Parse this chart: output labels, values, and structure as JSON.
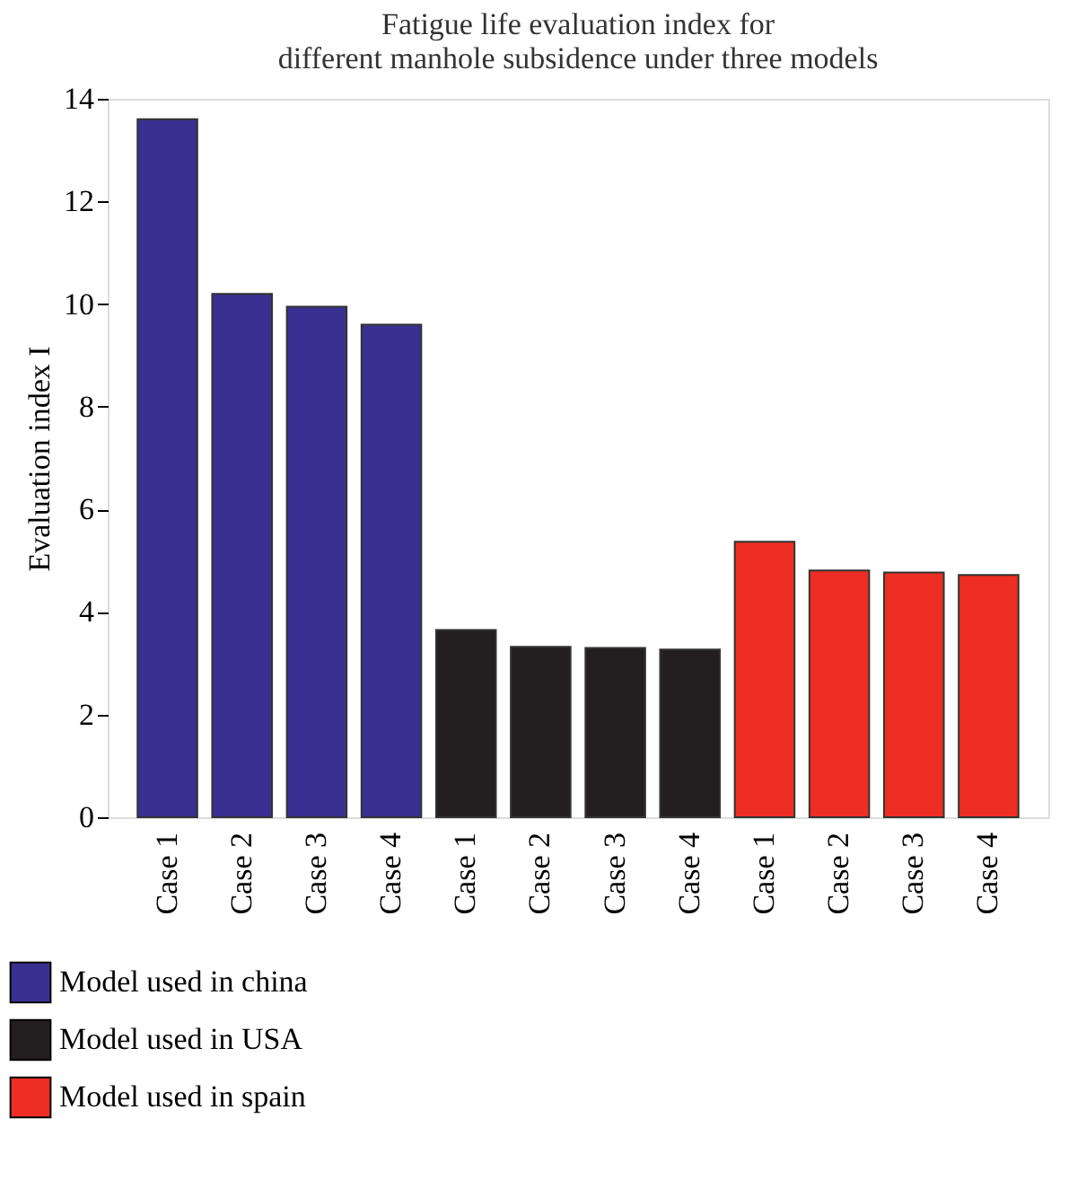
{
  "chart_data": {
    "type": "bar",
    "title": [
      "Fatigue life evaluation index for",
      "different manhole subsidence under three models"
    ],
    "ylabel": "Evaluation index I",
    "categories": [
      "Case 1",
      "Case 2",
      "Case 3",
      "Case 4",
      "Case 1",
      "Case 2",
      "Case 3",
      "Case 4",
      "Case 1",
      "Case 2",
      "Case 3",
      "Case 4"
    ],
    "series": [
      {
        "name": "Model used in china",
        "color": "#3a3091",
        "values": [
          13.6,
          10.2,
          9.95,
          9.6,
          null,
          null,
          null,
          null,
          null,
          null,
          null,
          null
        ]
      },
      {
        "name": "Model used in USA",
        "color": "#231f20",
        "values": [
          null,
          null,
          null,
          null,
          3.65,
          3.32,
          3.3,
          3.27,
          null,
          null,
          null,
          null
        ]
      },
      {
        "name": "Model used in spain",
        "color": "#ee2e24",
        "values": [
          null,
          null,
          null,
          null,
          null,
          null,
          null,
          null,
          5.37,
          4.81,
          4.77,
          4.72
        ]
      }
    ],
    "ylim": [
      0,
      14
    ],
    "yticks": [
      0,
      2,
      4,
      6,
      8,
      10,
      12,
      14
    ],
    "grid": false,
    "legend": "bottom left"
  }
}
